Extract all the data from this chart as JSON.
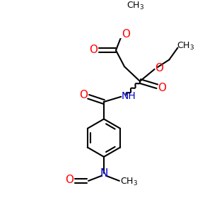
{
  "bg_color": "#FFFFFF",
  "bond_color": "#000000",
  "o_color": "#FF0000",
  "n_color": "#0000CC",
  "line_width": 1.5,
  "font_size": 9,
  "fig_size": [
    3.0,
    3.0
  ],
  "dpi": 100,
  "xlim": [
    0,
    10
  ],
  "ylim": [
    0,
    10
  ]
}
